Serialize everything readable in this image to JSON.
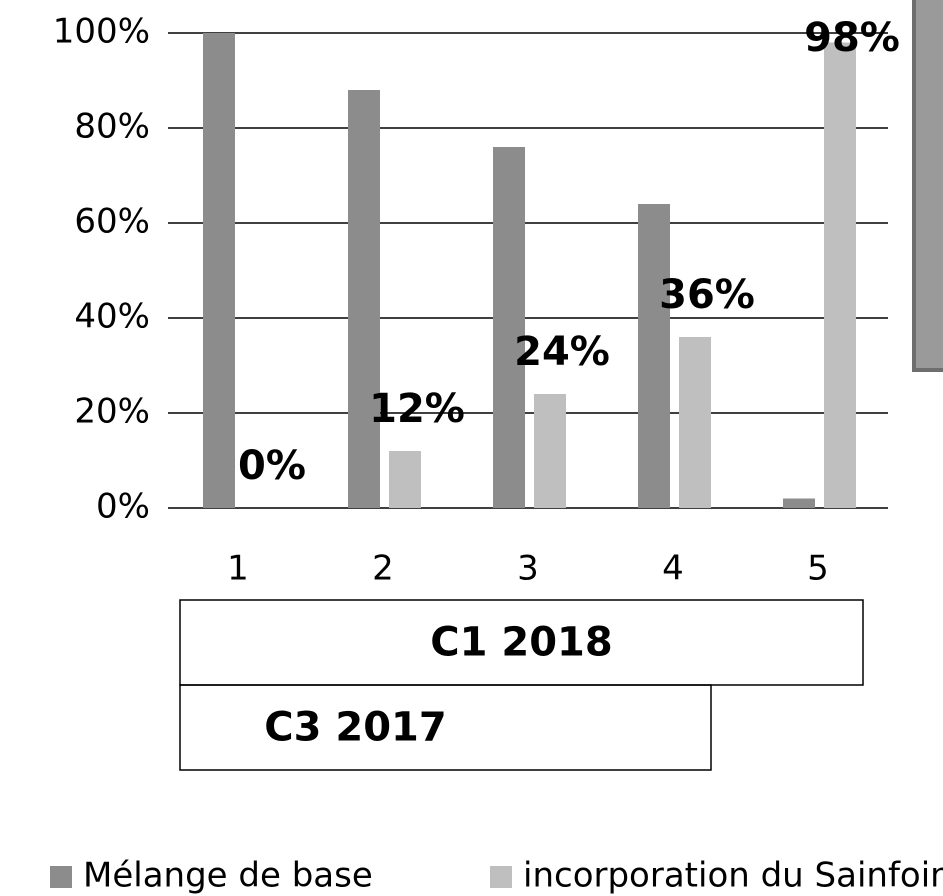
{
  "chart_data": {
    "type": "bar",
    "categories": [
      "1",
      "2",
      "3",
      "4",
      "5"
    ],
    "series": [
      {
        "name": "Mélange de base",
        "color": "#8c8c8c",
        "values": [
          100,
          88,
          76,
          64,
          2
        ]
      },
      {
        "name": "incorporation du Sainfoin",
        "color": "#bfbfbf",
        "values": [
          0,
          12,
          24,
          36,
          98
        ],
        "value_labels": [
          "0%",
          "12%",
          "24%",
          "36%",
          "98%"
        ]
      }
    ],
    "ylim": [
      0,
      100
    ],
    "yticks": [
      {
        "value": 0,
        "label": "0%"
      },
      {
        "value": 20,
        "label": "20%"
      },
      {
        "value": 40,
        "label": "40%"
      },
      {
        "value": 60,
        "label": "60%"
      },
      {
        "value": 80,
        "label": "80%"
      },
      {
        "value": 100,
        "label": "100%"
      }
    ],
    "grid": true,
    "legend": "bottom",
    "annotations": [
      "C1 2018",
      "C3 2017"
    ]
  }
}
